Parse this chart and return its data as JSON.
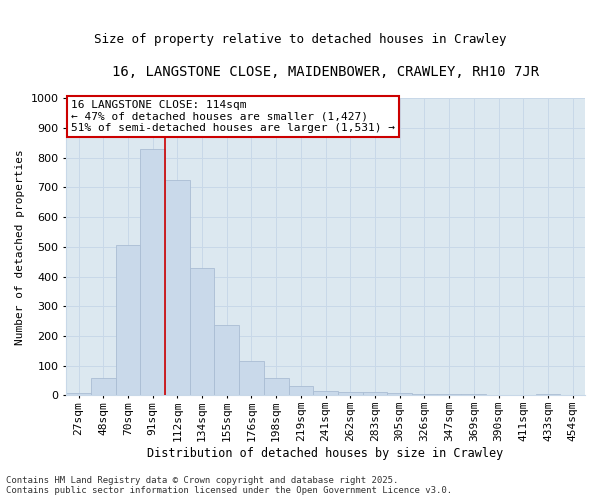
{
  "title": "16, LANGSTONE CLOSE, MAIDENBOWER, CRAWLEY, RH10 7JR",
  "subtitle": "Size of property relative to detached houses in Crawley",
  "xlabel": "Distribution of detached houses by size in Crawley",
  "ylabel": "Number of detached properties",
  "categories": [
    "27sqm",
    "48sqm",
    "70sqm",
    "91sqm",
    "112sqm",
    "134sqm",
    "155sqm",
    "176sqm",
    "198sqm",
    "219sqm",
    "241sqm",
    "262sqm",
    "283sqm",
    "305sqm",
    "326sqm",
    "347sqm",
    "369sqm",
    "390sqm",
    "411sqm",
    "433sqm",
    "454sqm"
  ],
  "values": [
    8,
    58,
    505,
    828,
    725,
    428,
    238,
    115,
    57,
    30,
    15,
    10,
    12,
    8,
    5,
    3,
    3,
    0,
    0,
    5,
    0
  ],
  "bar_color": "#c9d9ea",
  "bar_edgecolor": "#aabdd4",
  "vline_color": "#cc0000",
  "vline_x": 3.5,
  "annotation_title": "16 LANGSTONE CLOSE: 114sqm",
  "annotation_line1": "← 47% of detached houses are smaller (1,427)",
  "annotation_line2": "51% of semi-detached houses are larger (1,531) →",
  "annotation_box_color": "#ffffff",
  "annotation_border_color": "#cc0000",
  "grid_color": "#c8d8e8",
  "background_color": "#dce8f0",
  "footer_line1": "Contains HM Land Registry data © Crown copyright and database right 2025.",
  "footer_line2": "Contains public sector information licensed under the Open Government Licence v3.0.",
  "ylim": [
    0,
    1000
  ],
  "yticks": [
    0,
    100,
    200,
    300,
    400,
    500,
    600,
    700,
    800,
    900,
    1000
  ],
  "title_fontsize": 10,
  "subtitle_fontsize": 9,
  "xlabel_fontsize": 8.5,
  "ylabel_fontsize": 8,
  "tick_fontsize": 8,
  "annotation_fontsize": 8,
  "footer_fontsize": 6.5
}
